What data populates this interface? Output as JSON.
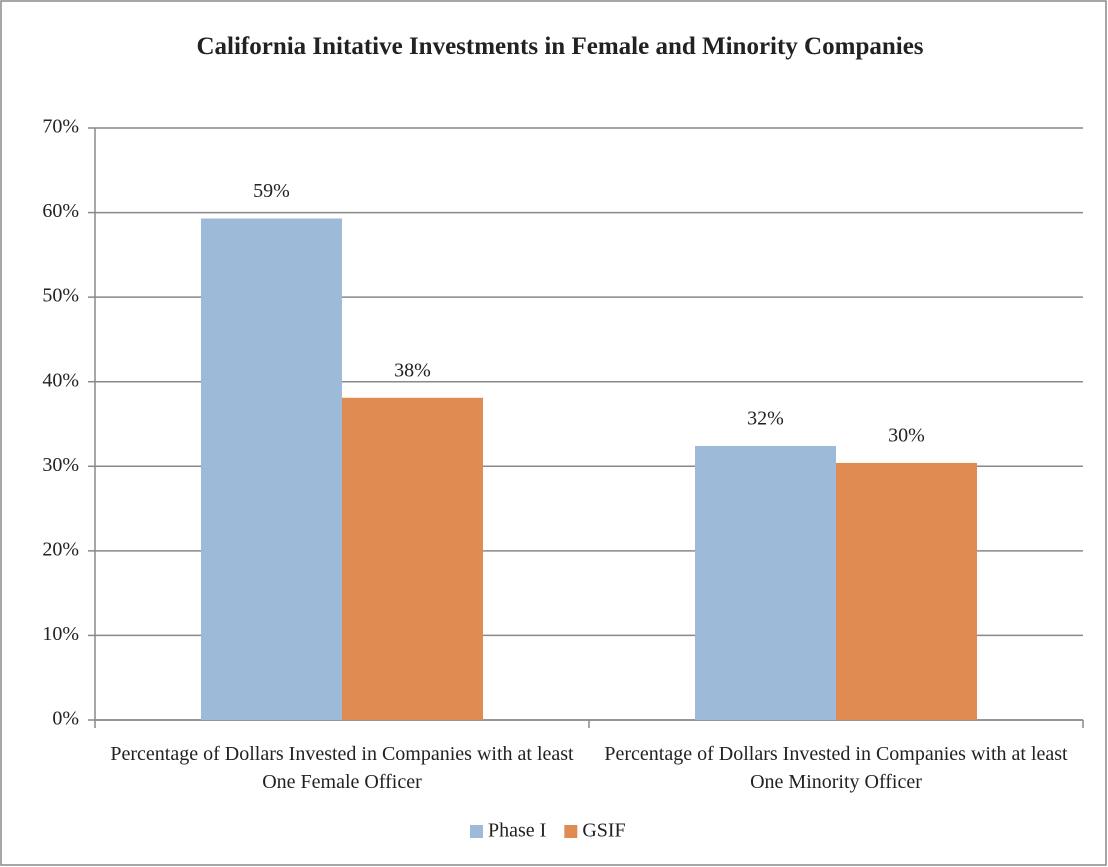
{
  "chart_data": {
    "type": "bar",
    "title": "California Initative Investments in Female and Minority Companies",
    "categories": [
      "Percentage of Dollars Invested in Companies with at least One Female Officer",
      "Percentage of Dollars Invested in Companies with at least One Minority Officer"
    ],
    "series": [
      {
        "name": "Phase I",
        "color": "#9dbbd9",
        "values": [
          59.3,
          32.4
        ],
        "value_labels": [
          "59%",
          "32%"
        ]
      },
      {
        "name": "GSIF",
        "color": "#e08b52",
        "values": [
          38.1,
          30.4
        ],
        "value_labels": [
          "38%",
          "30%"
        ]
      }
    ],
    "ylim": [
      0,
      70
    ],
    "yticks": [
      {
        "value": 0,
        "label": "0%"
      },
      {
        "value": 10,
        "label": "10%"
      },
      {
        "value": 20,
        "label": "20%"
      },
      {
        "value": 30,
        "label": "30%"
      },
      {
        "value": 40,
        "label": "40%"
      },
      {
        "value": 50,
        "label": "50%"
      },
      {
        "value": 60,
        "label": "60%"
      },
      {
        "value": 70,
        "label": "70%"
      }
    ],
    "grid": true,
    "legend": "bottom"
  }
}
